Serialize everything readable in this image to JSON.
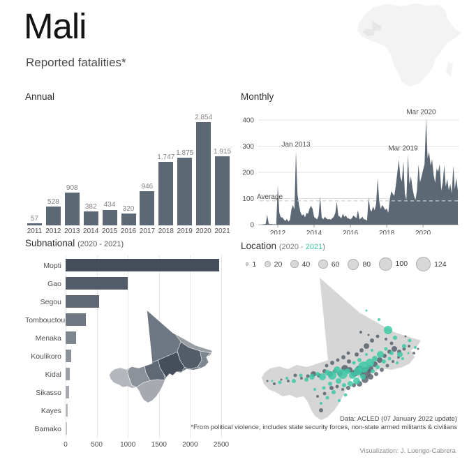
{
  "page": {
    "title": "Mali",
    "subtitle": "Reported fatalities*",
    "source_note": "Data: ACLED (07 January 2022 update)",
    "footnote": "*From political violence, includes state security forces, non-state armed militants & civilians",
    "credit": "Visualization: J. Luengo-Cabrera"
  },
  "colors": {
    "slate": "#5c6874",
    "teal": "#3ec9a7",
    "point_2020": "#505b67",
    "map_base": "#d6d6d6",
    "africa": "#f3f3f3",
    "africa_mali": "#e6e6e6",
    "legend_dot": "#d8d8d8",
    "legend_dot_stroke": "#aeaeae",
    "grid": "#e2e2e2"
  },
  "chart_data": [
    {
      "type": "bar",
      "title": "Annual",
      "categories": [
        "2011",
        "2012",
        "2013",
        "2014",
        "2015",
        "2016",
        "2017",
        "2018",
        "2019",
        "2020",
        "2021"
      ],
      "values": [
        57,
        528,
        908,
        382,
        434,
        320,
        946,
        1747,
        1875,
        2854,
        1915
      ],
      "value_labels": [
        "57",
        "528",
        "908",
        "382",
        "434",
        "320",
        "946",
        "1.747",
        "1.875",
        "2.854",
        "1.915"
      ],
      "ylim": [
        0,
        2854
      ]
    },
    {
      "type": "area",
      "title": "Monthly",
      "start_year": 2011,
      "values": [
        0,
        0,
        1,
        2,
        3,
        38,
        4,
        2,
        3,
        1,
        2,
        1,
        150,
        45,
        28,
        28,
        20,
        14,
        22,
        12,
        18,
        58,
        75,
        58,
        283,
        118,
        75,
        48,
        35,
        40,
        28,
        45,
        42,
        62,
        72,
        60,
        30,
        25,
        20,
        35,
        108,
        28,
        20,
        30,
        25,
        20,
        22,
        19,
        25,
        30,
        45,
        88,
        35,
        30,
        25,
        42,
        30,
        35,
        25,
        24,
        20,
        25,
        35,
        30,
        25,
        55,
        20,
        25,
        30,
        20,
        20,
        15,
        105,
        58,
        50,
        70,
        55,
        80,
        178,
        92,
        60,
        75,
        67,
        56,
        62,
        45,
        95,
        128,
        118,
        110,
        150,
        200,
        248,
        182,
        165,
        244,
        118,
        95,
        268,
        155,
        185,
        140,
        110,
        95,
        132,
        230,
        162,
        185,
        208,
        232,
        407,
        255,
        278,
        225,
        250,
        190,
        160,
        215,
        202,
        232,
        130,
        160,
        228,
        145,
        175,
        132,
        155,
        120,
        225,
        135,
        180,
        130
      ],
      "y_ticks": [
        0,
        100,
        200,
        300,
        400
      ],
      "x_ticks": [
        2012,
        2014,
        2016,
        2018,
        2020
      ],
      "average": {
        "label": "Average",
        "value": 91
      },
      "annotations": [
        {
          "label": "Jan 2013",
          "month_index": 24,
          "value": 283
        },
        {
          "label": "Mar 2019",
          "month_index": 98,
          "value": 268
        },
        {
          "label": "Mar 2020",
          "month_index": 110,
          "value": 407
        }
      ],
      "ylim": [
        0,
        420
      ]
    },
    {
      "type": "bar",
      "orientation": "horizontal",
      "title": "Subnational",
      "subtitle": "(2020 - 2021)",
      "items": [
        {
          "name": "Mopti",
          "value": 2470,
          "color": "#454f5c"
        },
        {
          "name": "Gao",
          "value": 1000,
          "color": "#535d69"
        },
        {
          "name": "Segou",
          "value": 535,
          "color": "#5f6873"
        },
        {
          "name": "Tombouctou",
          "value": 325,
          "color": "#6f7882"
        },
        {
          "name": "Menaka",
          "value": 168,
          "color": "#7e868f"
        },
        {
          "name": "Koulikoro",
          "value": 90,
          "color": "#8c929a"
        },
        {
          "name": "Kidal",
          "value": 70,
          "color": "#999ea5"
        },
        {
          "name": "Sikasso",
          "value": 55,
          "color": "#a6aab0"
        },
        {
          "name": "Kayes",
          "value": 35,
          "color": "#b4b7bc"
        },
        {
          "name": "Bamako",
          "value": 18,
          "color": "#c2c4c8"
        }
      ],
      "x_ticks": [
        0,
        500,
        1000,
        1500,
        2000,
        2500
      ],
      "xlim": [
        0,
        2500
      ]
    },
    {
      "type": "bubble-map",
      "title": "Location",
      "subtitle_prefix": "(2020 - ",
      "subtitle_year": "2021",
      "subtitle_suffix": ")",
      "legend": {
        "sizes": [
          {
            "label": "1",
            "r": 1.2
          },
          {
            "label": "20",
            "r": 3.2
          },
          {
            "label": "40",
            "r": 4.6
          },
          {
            "label": "60",
            "r": 5.8
          },
          {
            "label": "80",
            "r": 7.0
          },
          {
            "label": "100",
            "r": 8.2
          },
          {
            "label": "124",
            "r": 9.5
          }
        ]
      },
      "points_format": [
        "x",
        "y",
        "r",
        "year"
      ],
      "points": [
        [
          158,
          146,
          8,
          2020
        ],
        [
          150,
          142,
          6,
          2020
        ],
        [
          143,
          147,
          5,
          2020
        ],
        [
          136,
          142,
          4,
          2020
        ],
        [
          129,
          140,
          5,
          2020
        ],
        [
          122,
          147,
          4,
          2020
        ],
        [
          115,
          144,
          3,
          2020
        ],
        [
          108,
          148,
          4,
          2020
        ],
        [
          100,
          144,
          3,
          2020
        ],
        [
          92,
          150,
          3,
          2020
        ],
        [
          84,
          148,
          4,
          2020
        ],
        [
          76,
          151,
          2.5,
          2020
        ],
        [
          67,
          154,
          2,
          2020
        ],
        [
          58,
          150,
          2.5,
          2020
        ],
        [
          48,
          158,
          2,
          2020
        ],
        [
          38,
          156,
          1.5,
          2020
        ],
        [
          28,
          162,
          2,
          2020
        ],
        [
          18,
          158,
          1.5,
          2020
        ],
        [
          165,
          140,
          5,
          2020
        ],
        [
          172,
          134,
          4,
          2020
        ],
        [
          179,
          128,
          4,
          2020
        ],
        [
          186,
          122,
          3,
          2020
        ],
        [
          193,
          116,
          3,
          2020
        ],
        [
          200,
          112,
          4,
          2020
        ],
        [
          207,
          116,
          3,
          2020
        ],
        [
          214,
          112,
          2.5,
          2020
        ],
        [
          221,
          108,
          2,
          2020
        ],
        [
          228,
          118,
          2,
          2020
        ],
        [
          146,
          120,
          3,
          2020
        ],
        [
          153,
          114,
          3,
          2020
        ],
        [
          160,
          108,
          4,
          2020
        ],
        [
          168,
          100,
          3,
          2020
        ],
        [
          176,
          94,
          2.5,
          2020
        ],
        [
          152,
          88,
          2,
          2020
        ],
        [
          134,
          118,
          2.5,
          2020
        ],
        [
          127,
          124,
          3,
          2020
        ],
        [
          119,
          128,
          2.5,
          2020
        ],
        [
          111,
          132,
          3,
          2020
        ],
        [
          103,
          136,
          2.5,
          2020
        ],
        [
          135,
          130,
          3,
          2020
        ],
        [
          95,
          200,
          3,
          2020
        ],
        [
          90,
          180,
          2,
          2020
        ],
        [
          100,
          176,
          2.5,
          2020
        ],
        [
          110,
          168,
          3,
          2020
        ],
        [
          118,
          166,
          2.5,
          2020
        ],
        [
          126,
          170,
          2,
          2020
        ],
        [
          134,
          168,
          3,
          2020
        ],
        [
          142,
          164,
          3,
          2020
        ],
        [
          150,
          162,
          4,
          2020
        ],
        [
          158,
          156,
          5,
          2020
        ],
        [
          166,
          152,
          4,
          2020
        ],
        [
          174,
          148,
          3,
          2020
        ],
        [
          182,
          142,
          3,
          2020
        ],
        [
          190,
          136,
          2.5,
          2020
        ],
        [
          198,
          130,
          2,
          2020
        ],
        [
          206,
          124,
          2,
          2020
        ],
        [
          163,
          92,
          1.5,
          2020
        ],
        [
          188,
          98,
          2,
          2020
        ],
        [
          196,
          104,
          2.5,
          2020
        ],
        [
          216,
          94,
          1.5,
          2020
        ],
        [
          234,
          112,
          1.5,
          2020
        ],
        [
          191,
          85,
          6,
          2021
        ],
        [
          201,
          96,
          3,
          2021
        ],
        [
          178,
          70,
          2,
          2021
        ],
        [
          160,
          57,
          1.5,
          2021
        ],
        [
          222,
          100,
          2.5,
          2021
        ],
        [
          230,
          110,
          2,
          2021
        ],
        [
          214,
          108,
          3,
          2021
        ],
        [
          208,
          120,
          4,
          2021
        ],
        [
          196,
          118,
          3,
          2021
        ],
        [
          188,
          112,
          2.5,
          2021
        ],
        [
          180,
          120,
          5,
          2021
        ],
        [
          172,
          126,
          4,
          2021
        ],
        [
          165,
          132,
          6,
          2021
        ],
        [
          156,
          138,
          8,
          2021
        ],
        [
          148,
          144,
          6,
          2021
        ],
        [
          140,
          150,
          5,
          2021
        ],
        [
          133,
          144,
          4,
          2021
        ],
        [
          126,
          148,
          7,
          2021
        ],
        [
          118,
          142,
          5,
          2021
        ],
        [
          111,
          150,
          6,
          2021
        ],
        [
          104,
          146,
          4,
          2021
        ],
        [
          97,
          152,
          5,
          2021
        ],
        [
          90,
          148,
          3,
          2021
        ],
        [
          82,
          152,
          4,
          2021
        ],
        [
          74,
          156,
          3,
          2021
        ],
        [
          66,
          150,
          2.5,
          2021
        ],
        [
          56,
          158,
          3,
          2021
        ],
        [
          46,
          154,
          2,
          2021
        ],
        [
          36,
          160,
          2.5,
          2021
        ],
        [
          25,
          158,
          1.5,
          2021
        ],
        [
          120,
          158,
          4,
          2021
        ],
        [
          128,
          164,
          3,
          2021
        ],
        [
          137,
          162,
          4,
          2021
        ],
        [
          146,
          158,
          5,
          2021
        ],
        [
          155,
          152,
          4,
          2021
        ],
        [
          108,
          162,
          3,
          2021
        ],
        [
          99,
          168,
          2.5,
          2021
        ],
        [
          113,
          174,
          3,
          2021
        ],
        [
          104,
          182,
          2.5,
          2021
        ],
        [
          95,
          190,
          2,
          2021
        ],
        [
          121,
          186,
          2,
          2021
        ],
        [
          130,
          178,
          2.5,
          2021
        ],
        [
          86,
          170,
          2,
          2021
        ],
        [
          169,
          144,
          3,
          2021
        ],
        [
          176,
          138,
          3,
          2021
        ],
        [
          185,
          130,
          3,
          2021
        ],
        [
          193,
          126,
          2.5,
          2021
        ],
        [
          204,
          132,
          2,
          2021
        ],
        [
          212,
          126,
          2,
          2021
        ],
        [
          220,
          118,
          1.5,
          2021
        ],
        [
          150,
          128,
          3,
          2021
        ],
        [
          142,
          132,
          2.5,
          2021
        ],
        [
          160,
          120,
          2,
          2021
        ],
        [
          168,
          114,
          2,
          2021
        ]
      ]
    }
  ]
}
